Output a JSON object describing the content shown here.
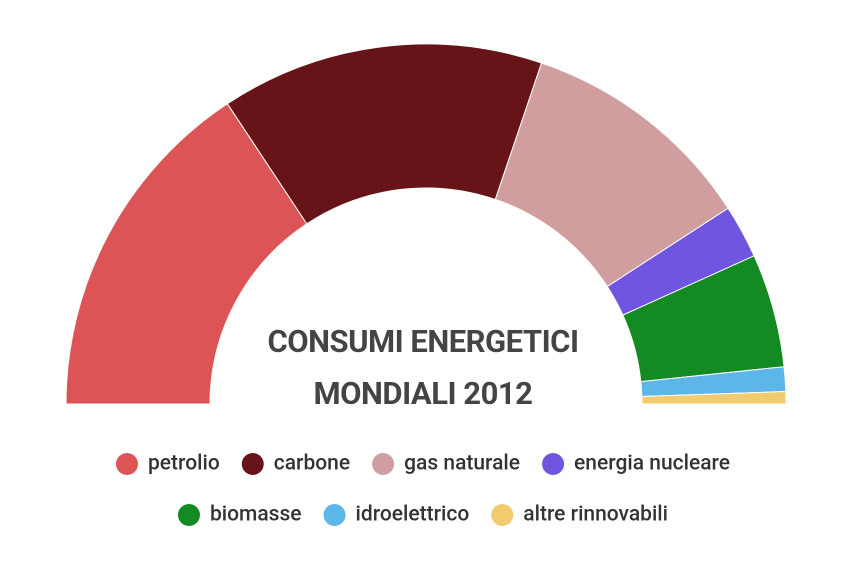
{
  "chart_data": {
    "type": "semi-donut",
    "title": "CONSUMI ENERGETICI MONDIALI 2012",
    "categories": [
      "petrolio",
      "carbone",
      "gas naturale",
      "energia nucleare",
      "biomasse",
      "idroelettrico",
      "altre rinnovabili"
    ],
    "values": [
      31.4,
      29.0,
      21.3,
      4.8,
      10.2,
      2.2,
      1.1
    ],
    "colors": [
      "#dc5456",
      "#661418",
      "#d09e9e",
      "#6f55df",
      "#138a22",
      "#5db6e8",
      "#f0cc6e"
    ],
    "legend": "bottom"
  }
}
